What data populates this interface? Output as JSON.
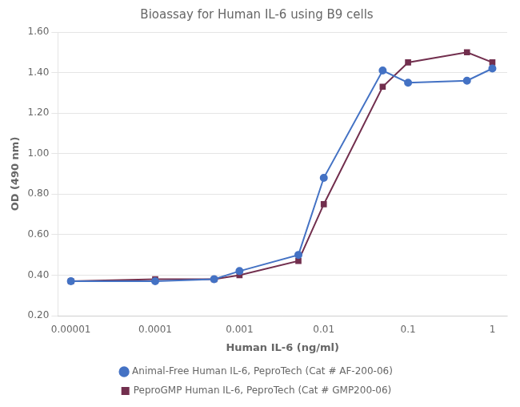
{
  "chart_data": {
    "type": "line",
    "title": "Bioassay for Human IL-6 using B9 cells",
    "xlabel": "Human IL-6 (ng/ml)",
    "ylabel": "OD (490 nm)",
    "log": "x",
    "grid": "y",
    "legend": "bottom",
    "xlim": [
      7e-06,
      1.5
    ],
    "xticks": [
      1e-05,
      0.0001,
      0.001,
      0.01,
      0.1,
      1
    ],
    "ylim": [
      0.2,
      1.6
    ],
    "yticks": [
      {
        "value": 0.2,
        "label": "0.20"
      },
      {
        "value": 0.4,
        "label": "0.40"
      },
      {
        "value": 0.6,
        "label": "0.60"
      },
      {
        "value": 0.8,
        "label": "0.80"
      },
      {
        "value": 1.0,
        "label": "1.00"
      },
      {
        "value": 1.2,
        "label": "1.20"
      },
      {
        "value": 1.4,
        "label": "1.40"
      },
      {
        "value": 1.6,
        "label": "1.60"
      }
    ],
    "x": [
      1e-05,
      0.0001,
      0.0005,
      0.001,
      0.005,
      0.01,
      0.05,
      0.1,
      0.5,
      1.0
    ],
    "series": [
      {
        "name": "Animal-Free Human IL-6, PeproTech (Cat # AF-200-06)",
        "color": "#4472C4",
        "marker": "circle",
        "values": [
          0.37,
          0.37,
          0.38,
          0.42,
          0.5,
          0.88,
          1.41,
          1.35,
          1.36,
          1.42
        ]
      },
      {
        "name": "PeproGMP Human IL-6, PeproTech (Cat # GMP200-06)",
        "color": "#722F4E",
        "marker": "square",
        "values": [
          0.37,
          0.38,
          0.38,
          0.4,
          0.47,
          0.75,
          1.33,
          1.45,
          1.5,
          1.45
        ]
      }
    ]
  }
}
